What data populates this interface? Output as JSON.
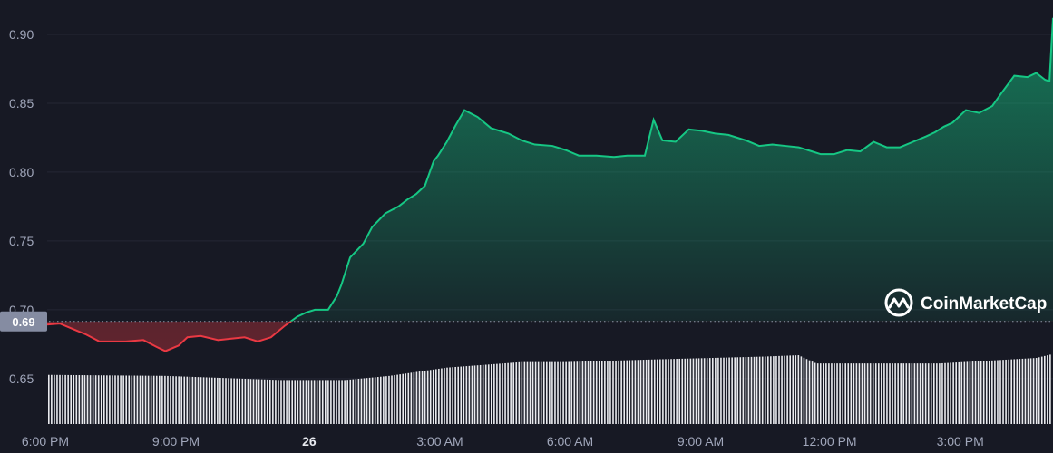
{
  "chart_data": {
    "type": "line",
    "ylim": [
      0.617,
      0.925
    ],
    "y_ticks": [
      {
        "label": "0.65",
        "value": 0.65
      },
      {
        "label": "0.70",
        "value": 0.7
      },
      {
        "label": "0.75",
        "value": 0.75
      },
      {
        "label": "0.80",
        "value": 0.8
      },
      {
        "label": "0.85",
        "value": 0.85
      },
      {
        "label": "0.90",
        "value": 0.9
      }
    ],
    "x_range": [
      -0.34,
      23.6
    ],
    "x_ticks": [
      {
        "label": "6:00 PM",
        "value": 0.69,
        "bold": false
      },
      {
        "label": "9:00 PM",
        "value": 3.66,
        "bold": false
      },
      {
        "label": "26",
        "value": 6.69,
        "bold": true
      },
      {
        "label": "3:00 AM",
        "value": 9.66,
        "bold": false
      },
      {
        "label": "6:00 AM",
        "value": 12.62,
        "bold": false
      },
      {
        "label": "9:00 AM",
        "value": 15.59,
        "bold": false
      },
      {
        "label": "12:00 PM",
        "value": 18.52,
        "bold": false
      },
      {
        "label": "3:00 PM",
        "value": 21.49,
        "bold": false
      }
    ],
    "reference": {
      "label": "0.69",
      "value": 0.6915
    },
    "price_colors": {
      "up": "#16c784",
      "down": "#ea3943"
    },
    "grid": true,
    "brand": {
      "name": "CoinMarketCap",
      "icon": "coinmarketcap-logo-icon"
    },
    "price": {
      "x": [
        -0.34,
        0.22,
        0.62,
        1.02,
        1.32,
        1.62,
        1.92,
        2.22,
        2.52,
        2.92,
        3.22,
        3.42,
        3.72,
        3.92,
        4.22,
        4.62,
        4.92,
        5.22,
        5.52,
        5.82,
        6.12,
        6.42,
        6.62,
        6.82,
        7.12,
        7.32,
        7.42,
        7.62,
        7.92,
        8.12,
        8.42,
        8.72,
        8.92,
        9.12,
        9.32,
        9.52,
        9.62,
        9.82,
        10.02,
        10.22,
        10.52,
        10.82,
        11.22,
        11.52,
        11.82,
        12.22,
        12.52,
        12.82,
        13.22,
        13.62,
        13.92,
        14.32,
        14.52,
        14.72,
        15.02,
        15.32,
        15.62,
        15.92,
        16.22,
        16.62,
        16.92,
        17.22,
        17.52,
        17.82,
        18.12,
        18.32,
        18.62,
        18.92,
        19.22,
        19.52,
        19.82,
        20.12,
        20.42,
        20.72,
        20.92,
        21.12,
        21.32,
        21.62,
        21.92,
        22.22,
        22.42,
        22.72,
        23.02,
        23.22,
        23.42,
        23.52,
        23.6
      ],
      "y": [
        0.692,
        0.689,
        0.689,
        0.69,
        0.686,
        0.682,
        0.677,
        0.677,
        0.677,
        0.678,
        0.673,
        0.67,
        0.674,
        0.68,
        0.681,
        0.678,
        0.679,
        0.68,
        0.677,
        0.68,
        0.688,
        0.695,
        0.698,
        0.7,
        0.7,
        0.71,
        0.718,
        0.738,
        0.748,
        0.76,
        0.77,
        0.775,
        0.78,
        0.784,
        0.79,
        0.808,
        0.812,
        0.822,
        0.834,
        0.845,
        0.84,
        0.832,
        0.828,
        0.823,
        0.82,
        0.819,
        0.816,
        0.812,
        0.812,
        0.811,
        0.812,
        0.812,
        0.838,
        0.823,
        0.822,
        0.831,
        0.83,
        0.828,
        0.827,
        0.823,
        0.819,
        0.82,
        0.819,
        0.818,
        0.815,
        0.813,
        0.813,
        0.816,
        0.815,
        0.822,
        0.818,
        0.818,
        0.822,
        0.826,
        0.829,
        0.833,
        0.836,
        0.845,
        0.843,
        0.848,
        0.857,
        0.87,
        0.869,
        0.872,
        0.867,
        0.866,
        0.912
      ]
    },
    "volume": {
      "x": [
        -0.34,
        3.4,
        6.0,
        7.5,
        8.5,
        9.8,
        11.5,
        12.5,
        14.6,
        17.0,
        17.8,
        18.2,
        21.0,
        23.2,
        23.6
      ],
      "y": [
        0.653,
        0.652,
        0.649,
        0.649,
        0.652,
        0.658,
        0.662,
        0.662,
        0.664,
        0.666,
        0.667,
        0.661,
        0.661,
        0.665,
        0.668
      ]
    }
  }
}
